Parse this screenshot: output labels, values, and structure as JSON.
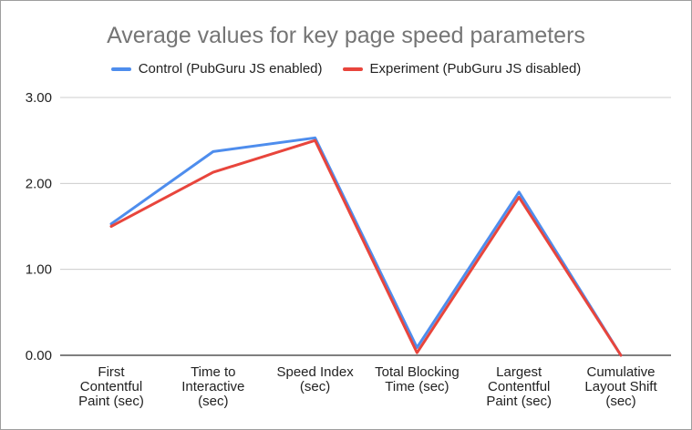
{
  "chart_data": {
    "type": "line",
    "title": "Average values for key page speed parameters",
    "xlabel": "",
    "ylabel": "",
    "ylim": [
      0,
      3
    ],
    "yticks": [
      "0.00",
      "1.00",
      "2.00",
      "3.00"
    ],
    "grid": true,
    "legend_position": "top",
    "categories": [
      [
        "First",
        "Contentful",
        "Paint (sec)"
      ],
      [
        "Time to",
        "Interactive",
        "(sec)"
      ],
      [
        "Speed Index",
        "(sec)"
      ],
      [
        "Total Blocking",
        "Time (sec)"
      ],
      [
        "Largest",
        "Contentful",
        "Paint (sec)"
      ],
      [
        "Cumulative",
        "Layout Shift",
        "(sec)"
      ]
    ],
    "series": [
      {
        "name": "Control (PubGuru JS enabled)",
        "color": "#4e8ded",
        "values": [
          1.53,
          2.37,
          2.53,
          0.09,
          1.9,
          0.0
        ]
      },
      {
        "name": "Experiment (PubGuru JS disabled)",
        "color": "#e8453c",
        "values": [
          1.5,
          2.13,
          2.5,
          0.03,
          1.84,
          0.0
        ]
      }
    ]
  }
}
